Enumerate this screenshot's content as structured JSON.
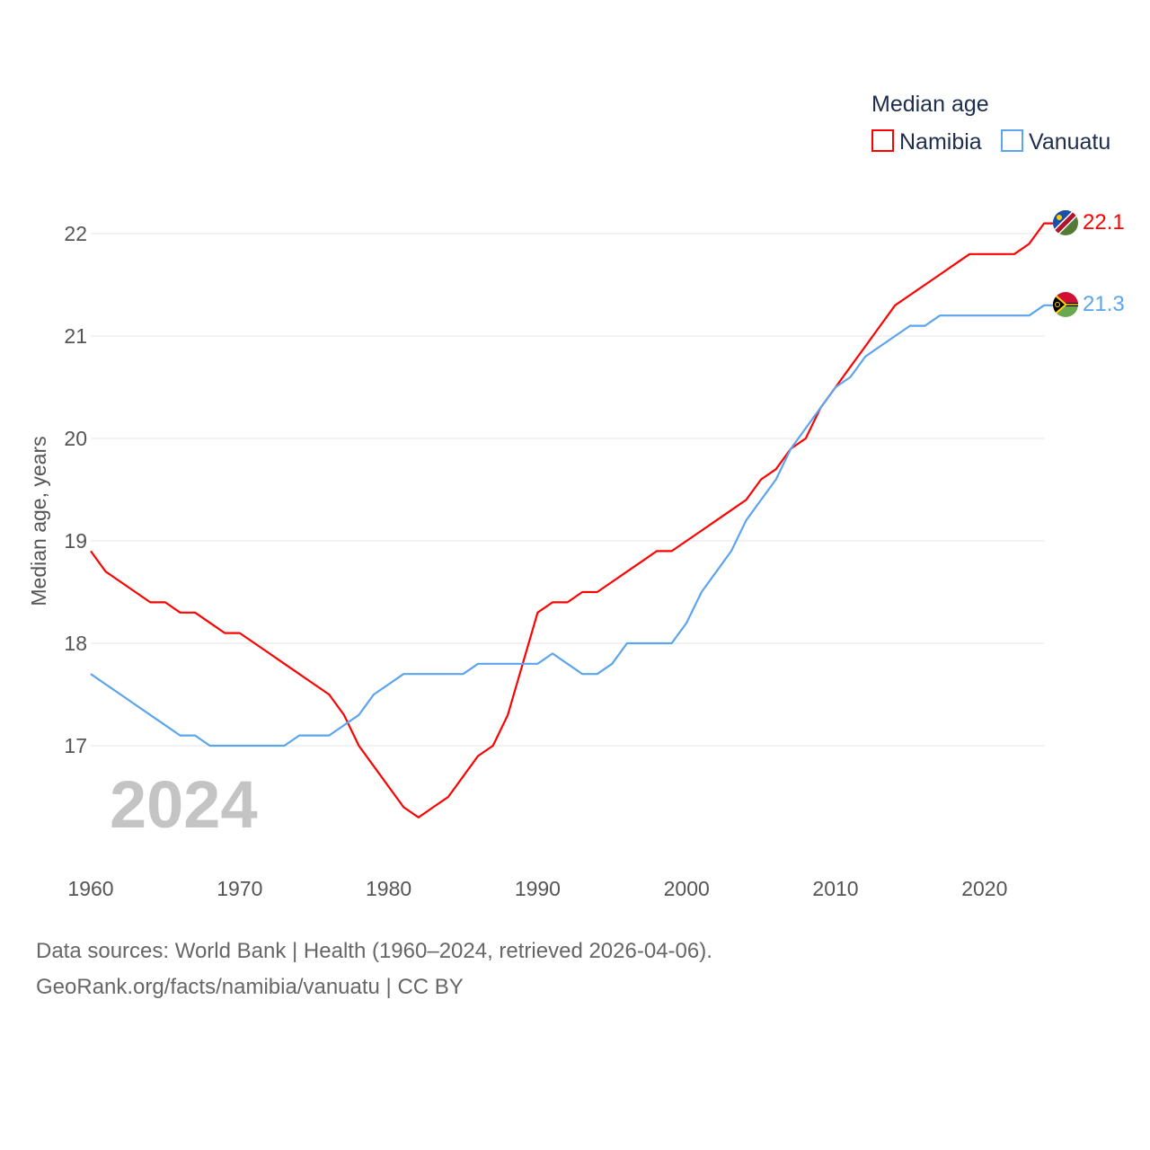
{
  "chart_data": {
    "type": "line",
    "legend_title": "Median age",
    "legend_placement": "top-right",
    "ylabel": "Median age, years",
    "xlabel": "",
    "year_watermark": "2024",
    "xlim": [
      1960,
      2024
    ],
    "ylim": [
      16,
      22.5
    ],
    "yticks": [
      17,
      18,
      19,
      20,
      21,
      22
    ],
    "xticks": [
      1960,
      1970,
      1980,
      1990,
      2000,
      2010,
      2020
    ],
    "grid": true,
    "x": [
      1960,
      1961,
      1962,
      1963,
      1964,
      1965,
      1966,
      1967,
      1968,
      1969,
      1970,
      1971,
      1972,
      1973,
      1974,
      1975,
      1976,
      1977,
      1978,
      1979,
      1980,
      1981,
      1982,
      1983,
      1984,
      1985,
      1986,
      1987,
      1988,
      1989,
      1990,
      1991,
      1992,
      1993,
      1994,
      1995,
      1996,
      1997,
      1998,
      1999,
      2000,
      2001,
      2002,
      2003,
      2004,
      2005,
      2006,
      2007,
      2008,
      2009,
      2010,
      2011,
      2012,
      2013,
      2014,
      2015,
      2016,
      2017,
      2018,
      2019,
      2020,
      2021,
      2022,
      2023,
      2024
    ],
    "series": [
      {
        "name": "Namibia",
        "color": "#ff0000",
        "end_label": "22.1",
        "flag": "namibia-flag",
        "values": [
          18.9,
          18.7,
          18.6,
          18.5,
          18.4,
          18.4,
          18.3,
          18.3,
          18.2,
          18.1,
          18.1,
          18.0,
          17.9,
          17.8,
          17.7,
          17.6,
          17.5,
          17.3,
          17.0,
          16.8,
          16.6,
          16.4,
          16.3,
          16.4,
          16.5,
          16.7,
          16.9,
          17.0,
          17.3,
          17.8,
          18.3,
          18.4,
          18.4,
          18.5,
          18.5,
          18.6,
          18.7,
          18.8,
          18.9,
          18.9,
          19.0,
          19.1,
          19.2,
          19.3,
          19.4,
          19.6,
          19.7,
          19.9,
          20.0,
          20.3,
          20.5,
          20.7,
          20.9,
          21.1,
          21.3,
          21.4,
          21.5,
          21.6,
          21.7,
          21.8,
          21.8,
          21.8,
          21.8,
          21.9,
          22.1
        ]
      },
      {
        "name": "Vanuatu",
        "color": "#5ba4ee",
        "end_label": "21.3",
        "flag": "vanuatu-flag",
        "values": [
          17.7,
          17.6,
          17.5,
          17.4,
          17.3,
          17.2,
          17.1,
          17.1,
          17.0,
          17.0,
          17.0,
          17.0,
          17.0,
          17.0,
          17.1,
          17.1,
          17.1,
          17.2,
          17.3,
          17.5,
          17.6,
          17.7,
          17.7,
          17.7,
          17.7,
          17.7,
          17.8,
          17.8,
          17.8,
          17.8,
          17.8,
          17.9,
          17.8,
          17.7,
          17.7,
          17.8,
          18.0,
          18.0,
          18.0,
          18.0,
          18.2,
          18.5,
          18.7,
          18.9,
          19.2,
          19.4,
          19.6,
          19.9,
          20.1,
          20.3,
          20.5,
          20.6,
          20.8,
          20.9,
          21.0,
          21.1,
          21.1,
          21.2,
          21.2,
          21.2,
          21.2,
          21.2,
          21.2,
          21.2,
          21.3
        ]
      }
    ]
  },
  "footer": {
    "line1": "Data sources: World Bank | Health (1960–2024, retrieved 2026-04-06).",
    "line2": "GeoRank.org/facts/namibia/vanuatu | CC BY"
  }
}
